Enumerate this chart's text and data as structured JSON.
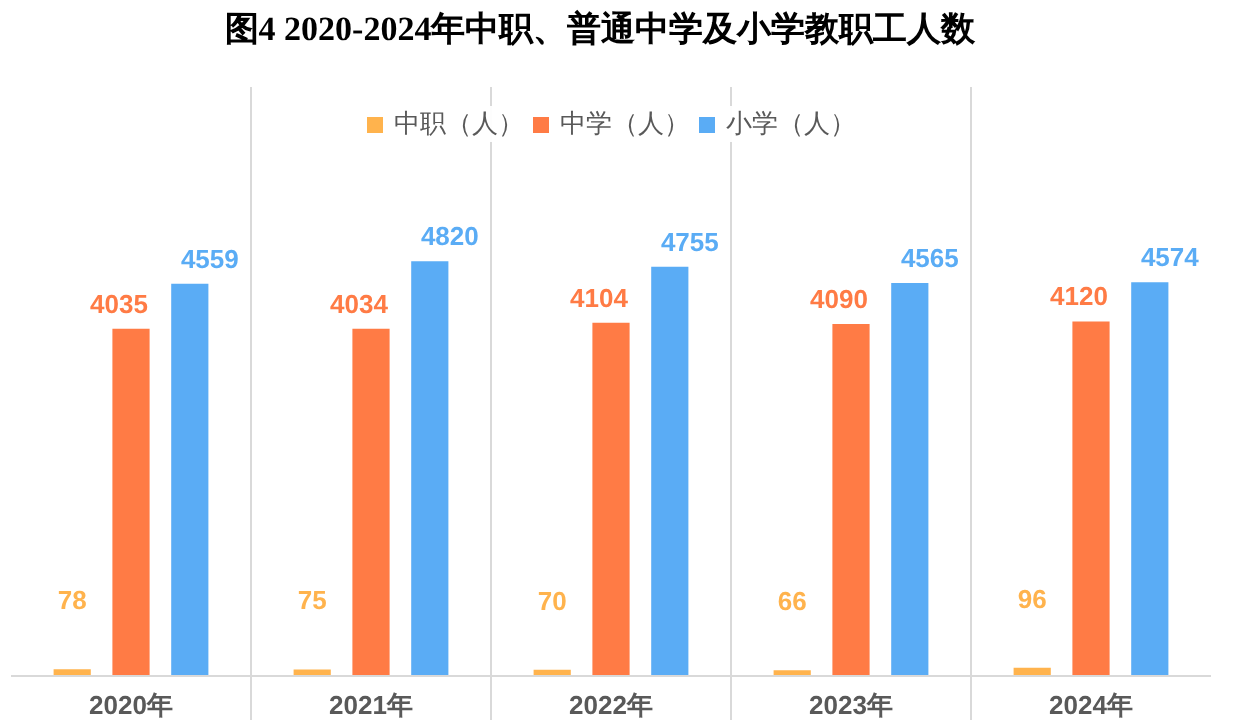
{
  "chart_data": {
    "type": "bar",
    "title": "图4  2020-2024年中职、普通中学及小学教职工人数",
    "categories": [
      "2020年",
      "2021年",
      "2022年",
      "2023年",
      "2024年"
    ],
    "series": [
      {
        "name": "中职（人）",
        "color": "#ffb34d",
        "values": [
          78,
          75,
          70,
          66,
          96
        ]
      },
      {
        "name": "中学（人）",
        "color": "#ff7b45",
        "values": [
          4035,
          4034,
          4104,
          4090,
          4120
        ]
      },
      {
        "name": "小学（人）",
        "color": "#5aacf5",
        "values": [
          4559,
          4820,
          4755,
          4565,
          4574
        ]
      }
    ],
    "data_labels": true,
    "legend": "top",
    "grid": "x"
  }
}
